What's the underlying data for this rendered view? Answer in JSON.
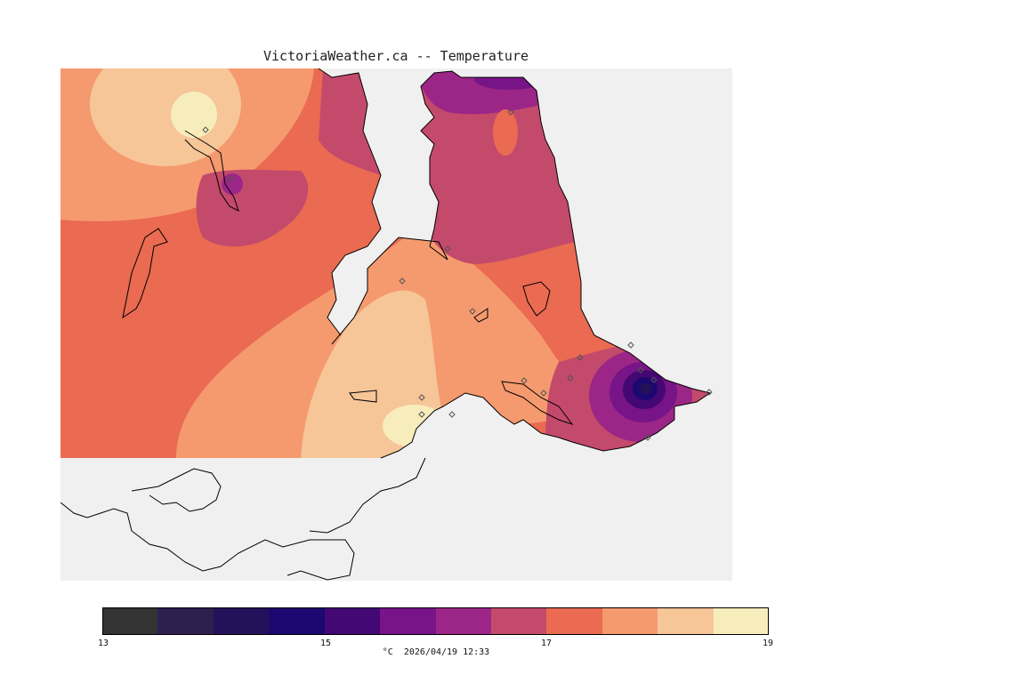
{
  "header": {
    "title": "VictoriaWeather.ca -- Temperature"
  },
  "legend": {
    "unit": "°C",
    "timestamp": "2026/04/19 12:33",
    "ticks": [
      "13",
      "15",
      "17",
      "19"
    ],
    "bands": [
      {
        "value": 13.0,
        "color": "#333333"
      },
      {
        "value": 13.5,
        "color": "#2e1f4f"
      },
      {
        "value": 14.0,
        "color": "#23115a"
      },
      {
        "value": 14.5,
        "color": "#1c0870"
      },
      {
        "value": 15.0,
        "color": "#430873"
      },
      {
        "value": 15.5,
        "color": "#761488"
      },
      {
        "value": 16.0,
        "color": "#9b2687"
      },
      {
        "value": 16.5,
        "color": "#c44a6c"
      },
      {
        "value": 17.0,
        "color": "#ea6a52"
      },
      {
        "value": 17.5,
        "color": "#f59a6e"
      },
      {
        "value": 18.0,
        "color": "#f6c598"
      },
      {
        "value": 18.5,
        "color": "#f7edbc"
      }
    ]
  },
  "colors": {
    "background": "#f0f0f0",
    "land_outline": "#000000",
    "station_marker": "#555555"
  }
}
